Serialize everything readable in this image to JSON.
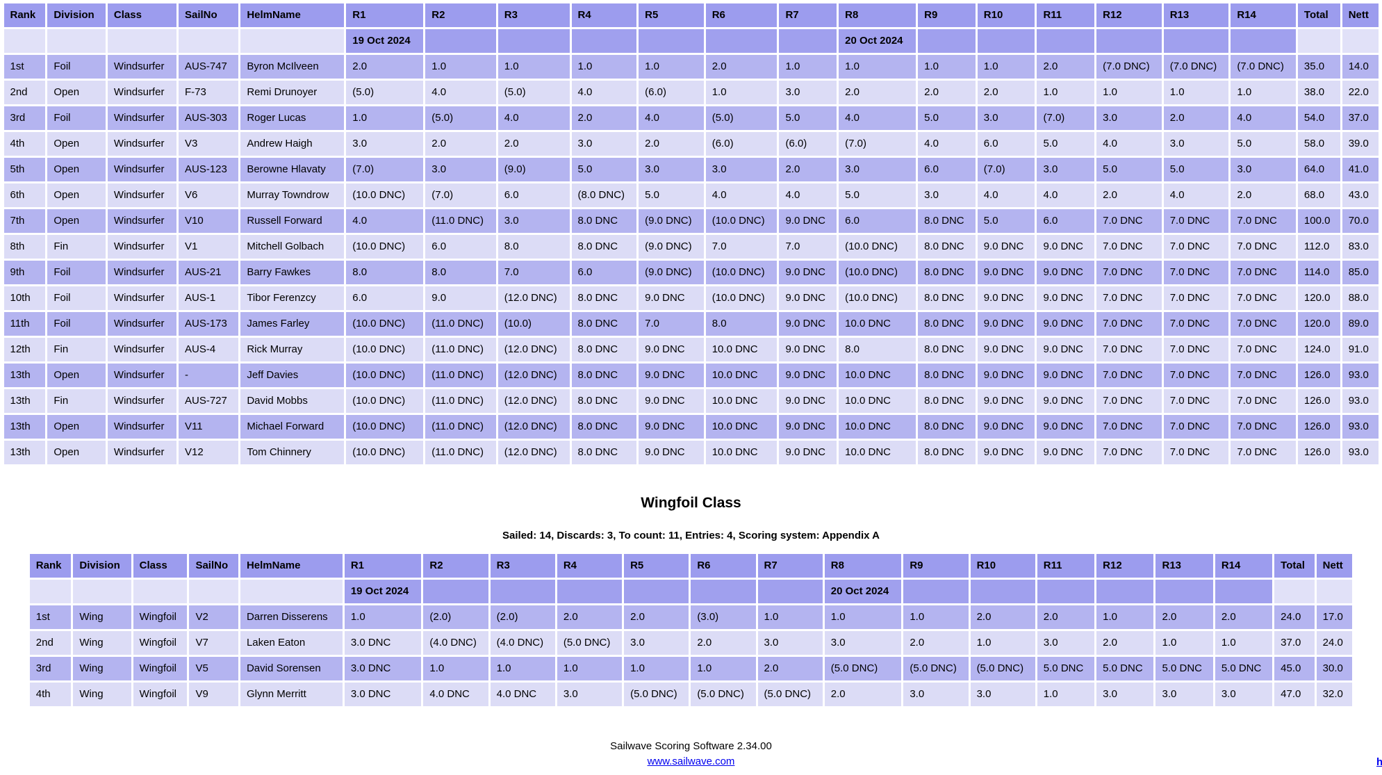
{
  "colors": {
    "header_bg": "#9c9cee",
    "row_dark_bg": "#b4b4f0",
    "row_light_bg": "#dcdcf6",
    "date_race_bg": "#a0a0ee",
    "date_plain_bg": "#e1e1f8",
    "text": "#000000",
    "link": "#0000ee",
    "page_bg": "#ffffff"
  },
  "windsurfer": {
    "columns": [
      "Rank",
      "Division",
      "Class",
      "SailNo",
      "HelmName",
      "R1",
      "R2",
      "R3",
      "R4",
      "R5",
      "R6",
      "R7",
      "R8",
      "R9",
      "R10",
      "R11",
      "R12",
      "R13",
      "R14",
      "Total",
      "Nett"
    ],
    "dates": {
      "R1": "19 Oct 2024",
      "R8": "20 Oct 2024"
    },
    "rows": [
      [
        "1st",
        "Foil",
        "Windsurfer",
        "AUS-747",
        "Byron McIlveen",
        "2.0",
        "1.0",
        "1.0",
        "1.0",
        "1.0",
        "2.0",
        "1.0",
        "1.0",
        "1.0",
        "1.0",
        "2.0",
        "(7.0 DNC)",
        "(7.0 DNC)",
        "(7.0 DNC)",
        "35.0",
        "14.0"
      ],
      [
        "2nd",
        "Open",
        "Windsurfer",
        "F-73",
        "Remi Drunoyer",
        "(5.0)",
        "4.0",
        "(5.0)",
        "4.0",
        "(6.0)",
        "1.0",
        "3.0",
        "2.0",
        "2.0",
        "2.0",
        "1.0",
        "1.0",
        "1.0",
        "1.0",
        "38.0",
        "22.0"
      ],
      [
        "3rd",
        "Foil",
        "Windsurfer",
        "AUS-303",
        "Roger Lucas",
        "1.0",
        "(5.0)",
        "4.0",
        "2.0",
        "4.0",
        "(5.0)",
        "5.0",
        "4.0",
        "5.0",
        "3.0",
        "(7.0)",
        "3.0",
        "2.0",
        "4.0",
        "54.0",
        "37.0"
      ],
      [
        "4th",
        "Open",
        "Windsurfer",
        "V3",
        "Andrew Haigh",
        "3.0",
        "2.0",
        "2.0",
        "3.0",
        "2.0",
        "(6.0)",
        "(6.0)",
        "(7.0)",
        "4.0",
        "6.0",
        "5.0",
        "4.0",
        "3.0",
        "5.0",
        "58.0",
        "39.0"
      ],
      [
        "5th",
        "Open",
        "Windsurfer",
        "AUS-123",
        "Berowne Hlavaty",
        "(7.0)",
        "3.0",
        "(9.0)",
        "5.0",
        "3.0",
        "3.0",
        "2.0",
        "3.0",
        "6.0",
        "(7.0)",
        "3.0",
        "5.0",
        "5.0",
        "3.0",
        "64.0",
        "41.0"
      ],
      [
        "6th",
        "Open",
        "Windsurfer",
        "V6",
        "Murray Towndrow",
        "(10.0 DNC)",
        "(7.0)",
        "6.0",
        "(8.0 DNC)",
        "5.0",
        "4.0",
        "4.0",
        "5.0",
        "3.0",
        "4.0",
        "4.0",
        "2.0",
        "4.0",
        "2.0",
        "68.0",
        "43.0"
      ],
      [
        "7th",
        "Open",
        "Windsurfer",
        "V10",
        "Russell Forward",
        "4.0",
        "(11.0 DNC)",
        "3.0",
        "8.0 DNC",
        "(9.0 DNC)",
        "(10.0 DNC)",
        "9.0 DNC",
        "6.0",
        "8.0 DNC",
        "5.0",
        "6.0",
        "7.0 DNC",
        "7.0 DNC",
        "7.0 DNC",
        "100.0",
        "70.0"
      ],
      [
        "8th",
        "Fin",
        "Windsurfer",
        "V1",
        "Mitchell Golbach",
        "(10.0 DNC)",
        "6.0",
        "8.0",
        "8.0 DNC",
        "(9.0 DNC)",
        "7.0",
        "7.0",
        "(10.0 DNC)",
        "8.0 DNC",
        "9.0 DNC",
        "9.0 DNC",
        "7.0 DNC",
        "7.0 DNC",
        "7.0 DNC",
        "112.0",
        "83.0"
      ],
      [
        "9th",
        "Foil",
        "Windsurfer",
        "AUS-21",
        "Barry Fawkes",
        "8.0",
        "8.0",
        "7.0",
        "6.0",
        "(9.0 DNC)",
        "(10.0 DNC)",
        "9.0 DNC",
        "(10.0 DNC)",
        "8.0 DNC",
        "9.0 DNC",
        "9.0 DNC",
        "7.0 DNC",
        "7.0 DNC",
        "7.0 DNC",
        "114.0",
        "85.0"
      ],
      [
        "10th",
        "Foil",
        "Windsurfer",
        "AUS-1",
        "Tibor Ferenzcy",
        "6.0",
        "9.0",
        "(12.0 DNC)",
        "8.0 DNC",
        "9.0 DNC",
        "(10.0 DNC)",
        "9.0 DNC",
        "(10.0 DNC)",
        "8.0 DNC",
        "9.0 DNC",
        "9.0 DNC",
        "7.0 DNC",
        "7.0 DNC",
        "7.0 DNC",
        "120.0",
        "88.0"
      ],
      [
        "11th",
        "Foil",
        "Windsurfer",
        "AUS-173",
        "James Farley",
        "(10.0 DNC)",
        "(11.0 DNC)",
        "(10.0)",
        "8.0 DNC",
        "7.0",
        "8.0",
        "9.0 DNC",
        "10.0 DNC",
        "8.0 DNC",
        "9.0 DNC",
        "9.0 DNC",
        "7.0 DNC",
        "7.0 DNC",
        "7.0 DNC",
        "120.0",
        "89.0"
      ],
      [
        "12th",
        "Fin",
        "Windsurfer",
        "AUS-4",
        "Rick Murray",
        "(10.0 DNC)",
        "(11.0 DNC)",
        "(12.0 DNC)",
        "8.0 DNC",
        "9.0 DNC",
        "10.0 DNC",
        "9.0 DNC",
        "8.0",
        "8.0 DNC",
        "9.0 DNC",
        "9.0 DNC",
        "7.0 DNC",
        "7.0 DNC",
        "7.0 DNC",
        "124.0",
        "91.0"
      ],
      [
        "13th",
        "Open",
        "Windsurfer",
        "-",
        "Jeff Davies",
        "(10.0 DNC)",
        "(11.0 DNC)",
        "(12.0 DNC)",
        "8.0 DNC",
        "9.0 DNC",
        "10.0 DNC",
        "9.0 DNC",
        "10.0 DNC",
        "8.0 DNC",
        "9.0 DNC",
        "9.0 DNC",
        "7.0 DNC",
        "7.0 DNC",
        "7.0 DNC",
        "126.0",
        "93.0"
      ],
      [
        "13th",
        "Fin",
        "Windsurfer",
        "AUS-727",
        "David Mobbs",
        "(10.0 DNC)",
        "(11.0 DNC)",
        "(12.0 DNC)",
        "8.0 DNC",
        "9.0 DNC",
        "10.0 DNC",
        "9.0 DNC",
        "10.0 DNC",
        "8.0 DNC",
        "9.0 DNC",
        "9.0 DNC",
        "7.0 DNC",
        "7.0 DNC",
        "7.0 DNC",
        "126.0",
        "93.0"
      ],
      [
        "13th",
        "Open",
        "Windsurfer",
        "V11",
        "Michael Forward",
        "(10.0 DNC)",
        "(11.0 DNC)",
        "(12.0 DNC)",
        "8.0 DNC",
        "9.0 DNC",
        "10.0 DNC",
        "9.0 DNC",
        "10.0 DNC",
        "8.0 DNC",
        "9.0 DNC",
        "9.0 DNC",
        "7.0 DNC",
        "7.0 DNC",
        "7.0 DNC",
        "126.0",
        "93.0"
      ],
      [
        "13th",
        "Open",
        "Windsurfer",
        "V12",
        "Tom Chinnery",
        "(10.0 DNC)",
        "(11.0 DNC)",
        "(12.0 DNC)",
        "8.0 DNC",
        "9.0 DNC",
        "10.0 DNC",
        "9.0 DNC",
        "10.0 DNC",
        "8.0 DNC",
        "9.0 DNC",
        "9.0 DNC",
        "7.0 DNC",
        "7.0 DNC",
        "7.0 DNC",
        "126.0",
        "93.0"
      ]
    ]
  },
  "wingfoil": {
    "title": "Wingfoil Class",
    "summary": "Sailed: 14, Discards: 3, To count: 11, Entries: 4, Scoring system: Appendix A",
    "columns": [
      "Rank",
      "Division",
      "Class",
      "SailNo",
      "HelmName",
      "R1",
      "R2",
      "R3",
      "R4",
      "R5",
      "R6",
      "R7",
      "R8",
      "R9",
      "R10",
      "R11",
      "R12",
      "R13",
      "R14",
      "Total",
      "Nett"
    ],
    "dates": {
      "R1": "19 Oct 2024",
      "R8": "20 Oct 2024"
    },
    "rows": [
      [
        "1st",
        "Wing",
        "Wingfoil",
        "V2",
        "Darren Disserens",
        "1.0",
        "(2.0)",
        "(2.0)",
        "2.0",
        "2.0",
        "(3.0)",
        "1.0",
        "1.0",
        "1.0",
        "2.0",
        "2.0",
        "1.0",
        "2.0",
        "2.0",
        "24.0",
        "17.0"
      ],
      [
        "2nd",
        "Wing",
        "Wingfoil",
        "V7",
        "Laken Eaton",
        "3.0 DNC",
        "(4.0 DNC)",
        "(4.0 DNC)",
        "(5.0 DNC)",
        "3.0",
        "2.0",
        "3.0",
        "3.0",
        "2.0",
        "1.0",
        "3.0",
        "2.0",
        "1.0",
        "1.0",
        "37.0",
        "24.0"
      ],
      [
        "3rd",
        "Wing",
        "Wingfoil",
        "V5",
        "David Sorensen",
        "3.0 DNC",
        "1.0",
        "1.0",
        "1.0",
        "1.0",
        "1.0",
        "2.0",
        "(5.0 DNC)",
        "(5.0 DNC)",
        "(5.0 DNC)",
        "5.0 DNC",
        "5.0 DNC",
        "5.0 DNC",
        "5.0 DNC",
        "45.0",
        "30.0"
      ],
      [
        "4th",
        "Wing",
        "Wingfoil",
        "V9",
        "Glynn Merritt",
        "3.0 DNC",
        "4.0 DNC",
        "4.0 DNC",
        "3.0",
        "(5.0 DNC)",
        "(5.0 DNC)",
        "(5.0 DNC)",
        "2.0",
        "3.0",
        "3.0",
        "1.0",
        "3.0",
        "3.0",
        "3.0",
        "47.0",
        "32.0"
      ]
    ]
  },
  "footer": {
    "software": "Sailwave Scoring Software 2.34.00",
    "link": "www.sailwave.com"
  },
  "corner_fragment": "h"
}
